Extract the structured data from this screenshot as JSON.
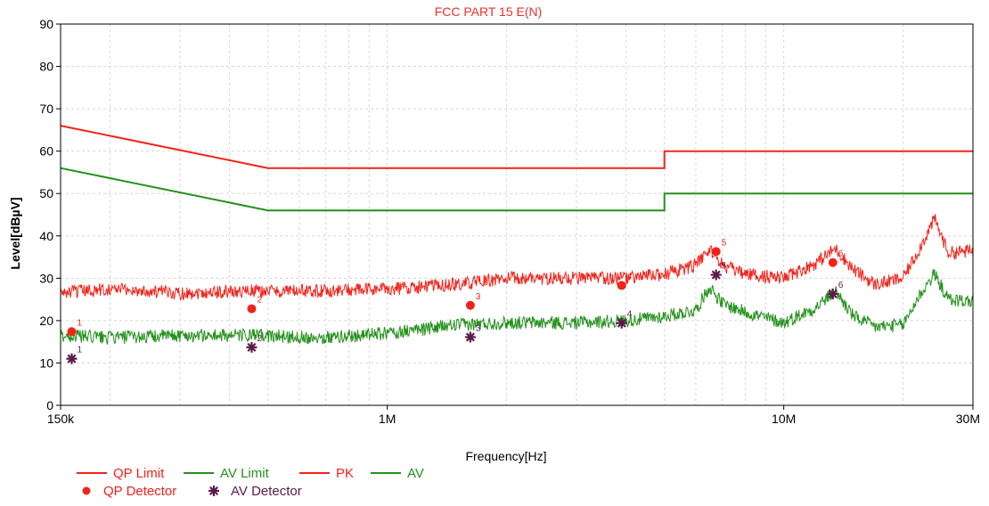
{
  "chart_data": {
    "type": "line",
    "title": "FCC PART 15 E(N)",
    "xlabel": "Frequency[Hz]",
    "ylabel": "Level[dBµV]",
    "x_scale": "log",
    "xlim": [
      150000,
      30000000
    ],
    "ylim": [
      0,
      90
    ],
    "grid": true,
    "x_ticks": [
      {
        "value": 150000,
        "label": "150k"
      },
      {
        "value": 1000000,
        "label": "1M"
      },
      {
        "value": 10000000,
        "label": "10M"
      },
      {
        "value": 30000000,
        "label": "30M"
      }
    ],
    "y_ticks": [
      0,
      10,
      20,
      30,
      40,
      50,
      60,
      70,
      80,
      90
    ],
    "colors": {
      "red": "#f2231b",
      "green": "#24901c",
      "marker": "#5c1a4a",
      "title": "#e8322b"
    },
    "series": [
      {
        "name": "QP Limit",
        "color": "#f2231b",
        "x": [
          150000,
          500000,
          5000000,
          5000000,
          30000000
        ],
        "y": [
          66,
          56,
          56,
          60,
          60
        ]
      },
      {
        "name": "AV Limit",
        "color": "#24901c",
        "x": [
          150000,
          500000,
          5000000,
          5000000,
          30000000
        ],
        "y": [
          56,
          46,
          46,
          50,
          50
        ]
      },
      {
        "name": "PK",
        "color": "#f2231b",
        "x": [
          150000,
          200000,
          300000,
          450000,
          700000,
          1000000,
          1500000,
          2000000,
          3000000,
          4000000,
          5000000,
          6000000,
          6500000,
          7000000,
          8000000,
          10000000,
          12000000,
          13500000,
          15000000,
          17000000,
          20000000,
          22000000,
          24000000,
          26000000,
          30000000
        ],
        "y": [
          26.5,
          27.5,
          26.5,
          27,
          27,
          27.5,
          28.5,
          30,
          30,
          30,
          31,
          33,
          37,
          33,
          31,
          30,
          33.5,
          37,
          32,
          28.5,
          30,
          37,
          44,
          36,
          36.5
        ]
      },
      {
        "name": "AV",
        "color": "#24901c",
        "x": [
          150000,
          200000,
          300000,
          450000,
          700000,
          1000000,
          1500000,
          2000000,
          3000000,
          4000000,
          5000000,
          6000000,
          6500000,
          7000000,
          8000000,
          10000000,
          12000000,
          13500000,
          15000000,
          17000000,
          20000000,
          22000000,
          24000000,
          26000000,
          30000000
        ],
        "y": [
          16.5,
          16,
          16.5,
          16.5,
          16,
          17,
          19,
          19.5,
          19.5,
          20,
          21,
          22.5,
          28,
          24,
          22,
          19.5,
          23,
          27,
          21,
          18.5,
          19,
          26,
          31,
          25,
          24.5
        ]
      },
      {
        "name": "QP Detector",
        "color": "#f2231b",
        "marker": "circle",
        "x": [
          160000,
          455000,
          1620000,
          3900000,
          6750000,
          13300000
        ],
        "y": [
          17.4,
          22.8,
          23.6,
          28.3,
          36.3,
          33.7
        ],
        "labels": [
          "1",
          "2",
          "3",
          "4",
          "5",
          "6"
        ]
      },
      {
        "name": "AV Detector",
        "color": "#5c1a4a",
        "marker": "star",
        "x": [
          160000,
          455000,
          1620000,
          3900000,
          6750000,
          13300000
        ],
        "y": [
          11,
          13.7,
          16.1,
          19.4,
          30.8,
          26.3
        ],
        "labels": [
          "1",
          "2",
          "3",
          "4",
          "5",
          "6"
        ]
      }
    ],
    "legend": {
      "placement": "bottom-left",
      "items": [
        {
          "label": "QP Limit",
          "kind": "line",
          "color": "#f2231b"
        },
        {
          "label": "AV Limit",
          "kind": "line",
          "color": "#24901c"
        },
        {
          "label": "PK",
          "kind": "line",
          "color": "#f2231b"
        },
        {
          "label": "AV",
          "kind": "line",
          "color": "#24901c"
        },
        {
          "label": "QP Detector",
          "kind": "circle",
          "color": "#f2231b"
        },
        {
          "label": "AV Detector",
          "kind": "star",
          "color": "#5c1a4a"
        }
      ]
    }
  }
}
